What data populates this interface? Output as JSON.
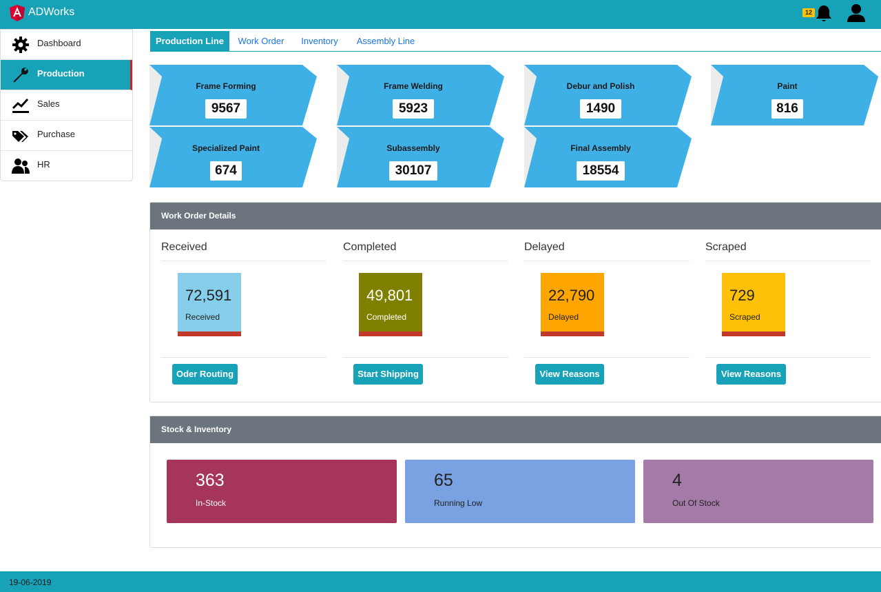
{
  "app": {
    "title": "ADWorks",
    "logo_icon": "angular-logo-icon"
  },
  "header": {
    "notification_count": "12",
    "bell_icon": "bell-icon",
    "user_icon": "user-icon"
  },
  "sidebar": {
    "items": [
      {
        "label": "Dashboard",
        "icon": "gear-icon",
        "active": false
      },
      {
        "label": "Production",
        "icon": "wrench-icon",
        "active": true
      },
      {
        "label": "Sales",
        "icon": "line-chart-icon",
        "active": false
      },
      {
        "label": "Purchase",
        "icon": "tags-icon",
        "active": false
      },
      {
        "label": "HR",
        "icon": "users-icon",
        "active": false
      }
    ]
  },
  "tabs": [
    {
      "label": "Production Line",
      "active": true
    },
    {
      "label": "Work Order",
      "active": false
    },
    {
      "label": "Inventory",
      "active": false
    },
    {
      "label": "Assembly Line",
      "active": false
    }
  ],
  "production_line": [
    {
      "title": "Frame Forming",
      "value": "9567"
    },
    {
      "title": "Frame Welding",
      "value": "5923"
    },
    {
      "title": "Debur and Polish",
      "value": "1490"
    },
    {
      "title": "Paint",
      "value": "816"
    },
    {
      "title": "Specialized Paint",
      "value": "674"
    },
    {
      "title": "Subassembly",
      "value": "30107"
    },
    {
      "title": "Final Assembly",
      "value": "18554"
    }
  ],
  "work_order": {
    "title": "Work Order Details",
    "columns": [
      {
        "heading": "Received",
        "value": "72,591",
        "label": "Received",
        "color": "#87ceeb",
        "button": "Oder Routing"
      },
      {
        "heading": "Completed",
        "value": "49,801",
        "label": "Completed",
        "color": "#808000",
        "button": "Start Shipping"
      },
      {
        "heading": "Delayed",
        "value": "22,790",
        "label": "Delayed",
        "color": "#ffa500",
        "button": "View Reasons"
      },
      {
        "heading": "Scraped",
        "value": "729",
        "label": "Scraped",
        "color": "#ffc107",
        "button": "View Reasons"
      }
    ]
  },
  "stock": {
    "title": "Stock & Inventory",
    "cards": [
      {
        "value": "363",
        "label": "In-Stock",
        "color": "#a6355a"
      },
      {
        "value": "65",
        "label": "Running Low",
        "color": "#7aa2e3"
      },
      {
        "value": "4",
        "label": "Out Of Stock",
        "color": "#a37aa8"
      }
    ]
  },
  "footer": {
    "date": "19-06-2019"
  },
  "colors": {
    "primary": "#17a2b8",
    "arrow_card": "#3eb0e6",
    "panel_header": "#6c757d"
  }
}
